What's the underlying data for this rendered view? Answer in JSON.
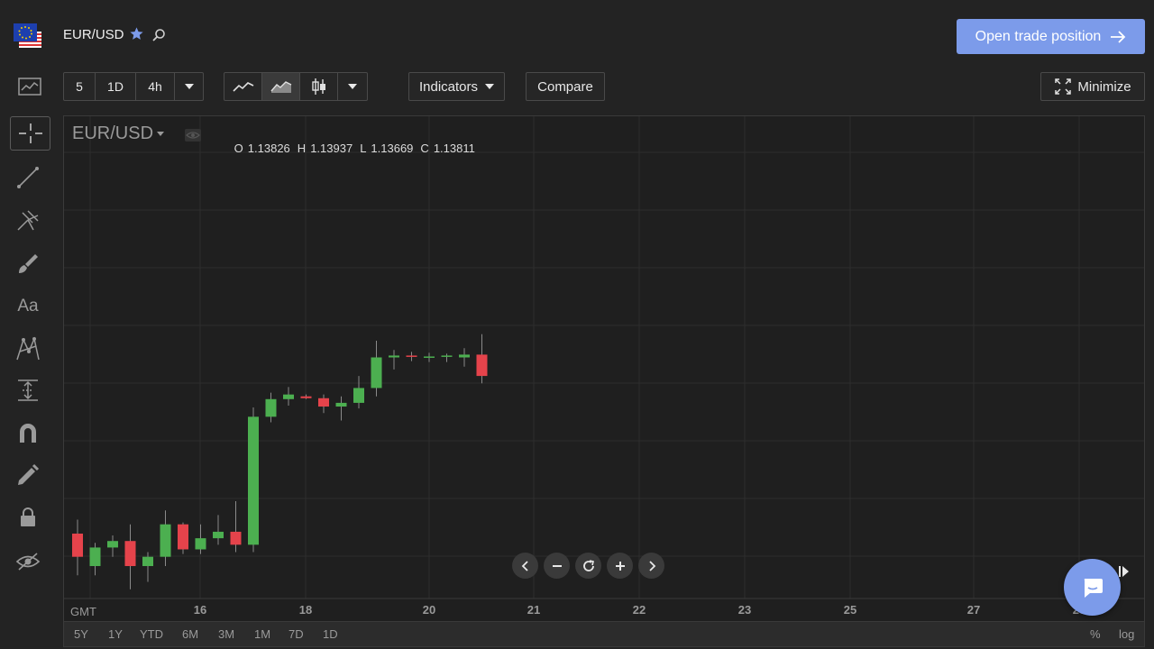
{
  "header": {
    "pair": "EUR/USD",
    "open_trade_label": "Open trade position"
  },
  "toolbar": {
    "intervals": [
      "5",
      "1D",
      "4h"
    ],
    "indicators_label": "Indicators",
    "compare_label": "Compare",
    "minimize_label": "Minimize"
  },
  "sidebar": {
    "text_tool_label": "Aa"
  },
  "chart": {
    "symbol": "EUR/USD",
    "ohlc": {
      "o_key": "O",
      "o": "1.13826",
      "h_key": "H",
      "h": "1.13937",
      "l_key": "L",
      "l": "1.13669",
      "c_key": "C",
      "c": "1.13811"
    },
    "timezone": "GMT",
    "x_ticks": [
      "16",
      "18",
      "20",
      "21",
      "22",
      "23",
      "25",
      "27",
      "28"
    ],
    "ranges": [
      "5Y",
      "1Y",
      "YTD",
      "6M",
      "3M",
      "1M",
      "7D",
      "1D"
    ],
    "scale_percent": "%",
    "scale_log": "log"
  },
  "colors": {
    "up": "#4caf50",
    "down": "#e5434b",
    "accent": "#7c9bea"
  },
  "chart_data": {
    "type": "candlestick",
    "x_axis_labels": [
      "16",
      "18",
      "20",
      "21",
      "22",
      "23",
      "25",
      "27",
      "28"
    ],
    "ylim": [
      1.095,
      1.147
    ],
    "candles": [
      {
        "o": 1.102,
        "h": 1.1035,
        "l": 1.0975,
        "c": 1.0995
      },
      {
        "o": 1.0985,
        "h": 1.101,
        "l": 1.0975,
        "c": 1.1005
      },
      {
        "o": 1.1005,
        "h": 1.1018,
        "l": 1.0995,
        "c": 1.1012
      },
      {
        "o": 1.1012,
        "h": 1.103,
        "l": 1.096,
        "c": 1.0985
      },
      {
        "o": 1.0985,
        "h": 1.1,
        "l": 1.0968,
        "c": 1.0995
      },
      {
        "o": 1.0995,
        "h": 1.1045,
        "l": 1.0985,
        "c": 1.103
      },
      {
        "o": 1.103,
        "h": 1.1032,
        "l": 1.0998,
        "c": 1.1003
      },
      {
        "o": 1.1003,
        "h": 1.103,
        "l": 1.0998,
        "c": 1.1015
      },
      {
        "o": 1.1015,
        "h": 1.104,
        "l": 1.1008,
        "c": 1.1022
      },
      {
        "o": 1.1022,
        "h": 1.1055,
        "l": 1.1,
        "c": 1.1008
      },
      {
        "o": 1.1008,
        "h": 1.1156,
        "l": 1.1,
        "c": 1.1146
      },
      {
        "o": 1.1146,
        "h": 1.1172,
        "l": 1.114,
        "c": 1.1165
      },
      {
        "o": 1.1165,
        "h": 1.1178,
        "l": 1.1158,
        "c": 1.117
      },
      {
        "o": 1.1168,
        "h": 1.117,
        "l": 1.1165,
        "c": 1.1166
      },
      {
        "o": 1.1166,
        "h": 1.117,
        "l": 1.115,
        "c": 1.1157
      },
      {
        "o": 1.1157,
        "h": 1.1168,
        "l": 1.1142,
        "c": 1.1161
      },
      {
        "o": 1.1161,
        "h": 1.119,
        "l": 1.1155,
        "c": 1.1177
      },
      {
        "o": 1.1177,
        "h": 1.1228,
        "l": 1.1168,
        "c": 1.121
      },
      {
        "o": 1.121,
        "h": 1.1218,
        "l": 1.1197,
        "c": 1.1212
      },
      {
        "o": 1.1212,
        "h": 1.1216,
        "l": 1.1206,
        "c": 1.1211
      },
      {
        "o": 1.1211,
        "h": 1.1215,
        "l": 1.1205,
        "c": 1.1211
      },
      {
        "o": 1.1211,
        "h": 1.1214,
        "l": 1.1205,
        "c": 1.1212
      },
      {
        "o": 1.121,
        "h": 1.122,
        "l": 1.12,
        "c": 1.1213
      },
      {
        "o": 1.1213,
        "h": 1.1235,
        "l": 1.1182,
        "c": 1.119
      }
    ]
  }
}
